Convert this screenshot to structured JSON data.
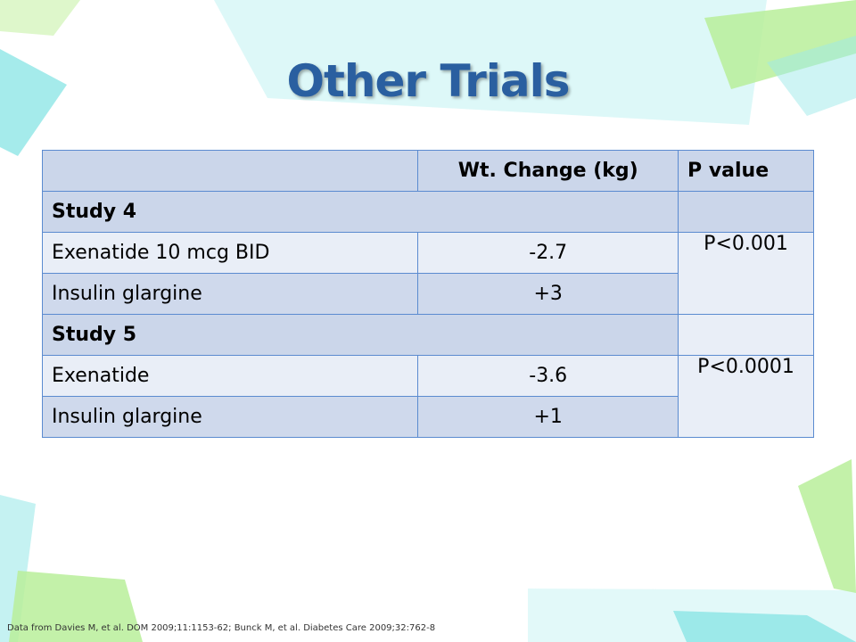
{
  "slide": {
    "title": "Other Trials",
    "footnote": "Data from Davies M, et al. DOM 2009;11:1153-62;  Bunck M, et al. Diabetes Care 2009;32:762-8"
  },
  "table": {
    "headers": [
      "",
      "Wt. Change (kg)",
      "P value"
    ],
    "sections": [
      {
        "label": "Study 4",
        "rows": [
          {
            "treatment": "Exenatide 10 mcg BID",
            "wt_change": "-2.7"
          },
          {
            "treatment": "Insulin glargine",
            "wt_change": "+3"
          }
        ],
        "p_value": "P<0.001"
      },
      {
        "label": "Study 5",
        "rows": [
          {
            "treatment": "Exenatide",
            "wt_change": "-3.6"
          },
          {
            "treatment": "Insulin glargine",
            "wt_change": "+1"
          }
        ],
        "p_value": "P<0.0001"
      }
    ]
  },
  "colors": {
    "title": "#2a5fa0",
    "table_border": "#5b8bd0",
    "header_fill": "#cbd6ea",
    "row_light": "#e9eef7",
    "row_dark": "#cfd9ec",
    "decor_green": "#b8ef9a",
    "decor_cyan": "#9eeaea"
  }
}
